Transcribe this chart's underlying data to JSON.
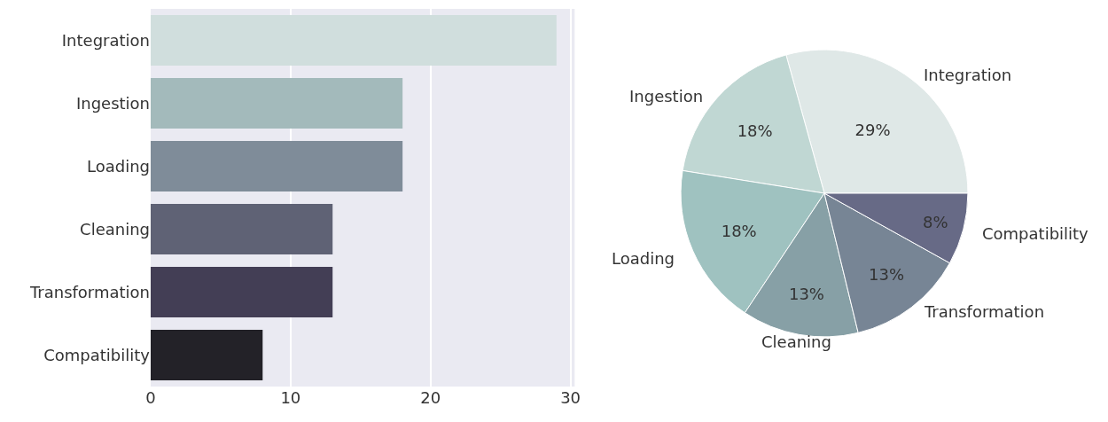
{
  "chart_data": [
    {
      "type": "bar",
      "orientation": "horizontal",
      "categories": [
        "Integration",
        "Ingestion",
        "Loading",
        "Cleaning",
        "Transformation",
        "Compatibility"
      ],
      "values": [
        29,
        18,
        18,
        13,
        13,
        8
      ],
      "colors": [
        "#d0dedd",
        "#a3babb",
        "#7f8c99",
        "#5f6275",
        "#433e55",
        "#232228"
      ],
      "xlim": [
        0,
        30.3
      ],
      "xticks": [
        0,
        10,
        20,
        30
      ],
      "grid": "x"
    },
    {
      "type": "pie",
      "categories": [
        "Integration",
        "Ingestion",
        "Loading",
        "Cleaning",
        "Transformation",
        "Compatibility"
      ],
      "values": [
        29,
        18,
        18,
        13,
        13,
        8
      ],
      "value_labels": [
        "29%",
        "18%",
        "18%",
        "13%",
        "13%",
        "8%"
      ],
      "colors": [
        "#dfe8e7",
        "#c0d7d3",
        "#9fc2c0",
        "#87a0a6",
        "#778595",
        "#676a86"
      ]
    }
  ]
}
